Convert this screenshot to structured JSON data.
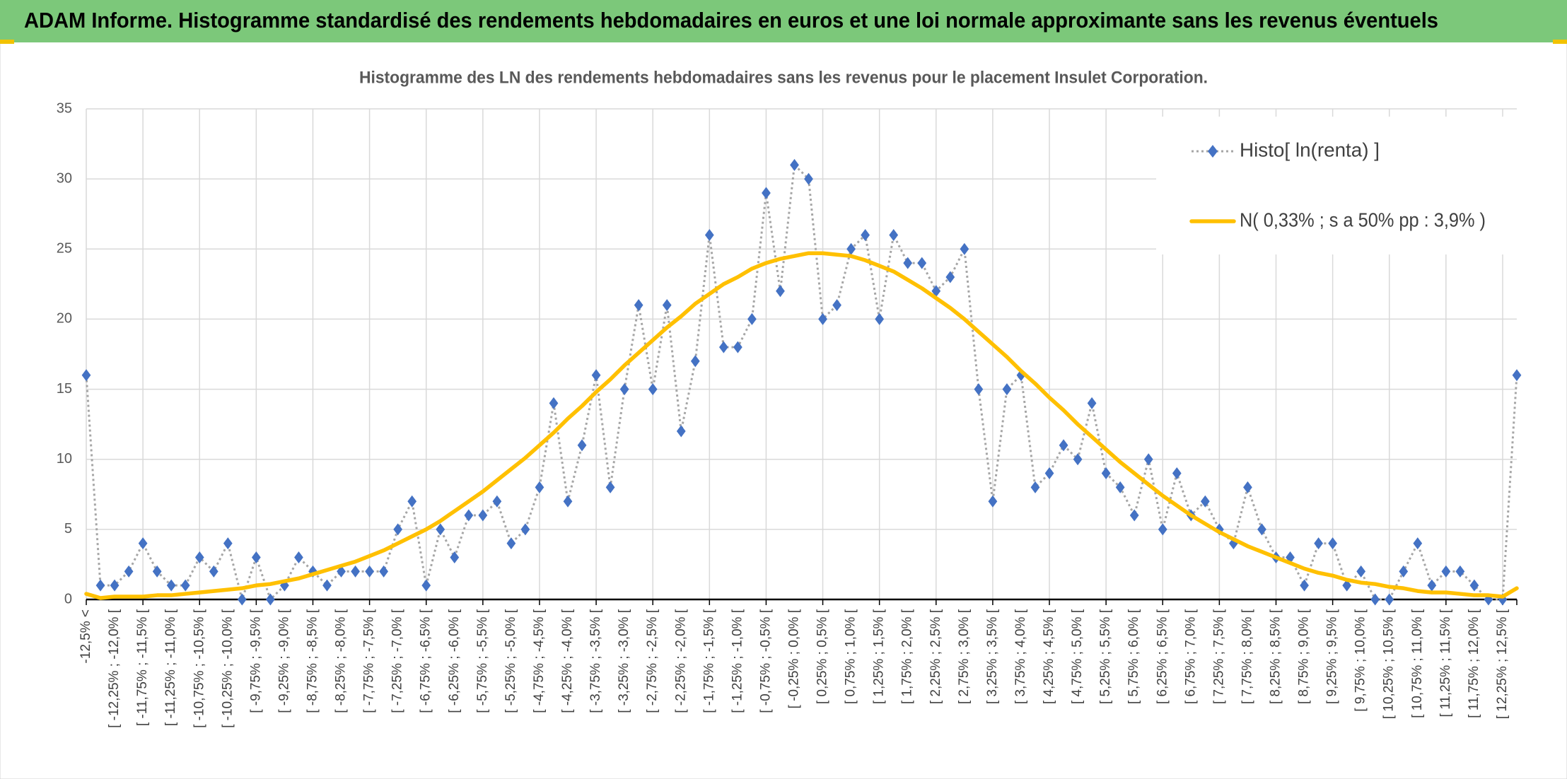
{
  "header": {
    "title": "ADAM Informe. Histogramme standardisé des rendements hebdomadaires en euros et une loi normale approximante sans les revenus éventuels"
  },
  "chart_data": {
    "type": "line",
    "title": "Histogramme des LN des rendements hebdomadaires sans les revenus pour le placement Insulet Corporation.",
    "categories": [
      "-12,5% <",
      null,
      "[ -12,25% ; -12,0% [",
      null,
      "[ -11,75% ; -11,5% [",
      null,
      "[ -11,25% ; -11,0% [",
      null,
      "[ -10,75% ; -10,5% [",
      null,
      "[ -10,25% ; -10,0% [",
      null,
      "[ -9,75% ; -9,5% [",
      null,
      "[ -9,25% ; -9,0% [",
      null,
      "[ -8,75% ; -8,5% [",
      null,
      "[ -8,25% ; -8,0% [",
      null,
      "[ -7,75% ; -7,5% [",
      null,
      "[ -7,25% ; -7,0% [",
      null,
      "[ -6,75% ; -6,5% [",
      null,
      "[ -6,25% ; -6,0% [",
      null,
      "[ -5,75% ; -5,5% [",
      null,
      "[ -5,25% ; -5,0% [",
      null,
      "[ -4,75% ; -4,5% [",
      null,
      "[ -4,25% ; -4,0% [",
      null,
      "[ -3,75% ; -3,5% [",
      null,
      "[ -3,25% ; -3,0% [",
      null,
      "[ -2,75% ; -2,5% [",
      null,
      "[ -2,25% ; -2,0% [",
      null,
      "[ -1,75% ; -1,5% [",
      null,
      "[ -1,25% ; -1,0% [",
      null,
      "[ -0,75% ; -0,5% [",
      null,
      "[ -0,25% ; 0,0% [",
      null,
      "[ 0,25% ; 0,5% [",
      null,
      "[ 0,75% ; 1,0% [",
      null,
      "[ 1,25% ; 1,5% [",
      null,
      "[ 1,75% ; 2,0% [",
      null,
      "[ 2,25% ; 2,5% [",
      null,
      "[ 2,75% ; 3,0% [",
      null,
      "[ 3,25% ; 3,5% [",
      null,
      "[ 3,75% ; 4,0% [",
      null,
      "[ 4,25% ; 4,5% [",
      null,
      "[ 4,75% ; 5,0% [",
      null,
      "[ 5,25% ; 5,5% [",
      null,
      "[ 5,75% ; 6,0% [",
      null,
      "[ 6,25% ; 6,5% [",
      null,
      "[ 6,75% ; 7,0% [",
      null,
      "[ 7,25% ; 7,5% [",
      null,
      "[ 7,75% ; 8,0% [",
      null,
      "[ 8,25% ; 8,5% [",
      null,
      "[ 8,75% ; 9,0% [",
      null,
      "[ 9,25% ; 9,5% [",
      null,
      "[ 9,75% ; 10,0% [",
      null,
      "[ 10,25% ; 10,5% [",
      null,
      "[ 10,75% ; 11,0% [",
      null,
      "[ 11,25% ; 11,5% [",
      null,
      "[ 11,75% ; 12,0% [",
      null,
      "[ 12,25% ; 12,5% [",
      null
    ],
    "series": [
      {
        "name": "Histo[ ln(renta) ]",
        "color": "#4472c4",
        "values": [
          16,
          1,
          1,
          2,
          4,
          2,
          1,
          1,
          3,
          2,
          4,
          0,
          3,
          0,
          1,
          3,
          2,
          1,
          2,
          2,
          2,
          2,
          5,
          7,
          1,
          5,
          3,
          6,
          6,
          7,
          4,
          5,
          8,
          14,
          7,
          11,
          16,
          8,
          15,
          21,
          15,
          21,
          12,
          17,
          26,
          18,
          18,
          20,
          29,
          22,
          31,
          30,
          20,
          21,
          25,
          26,
          20,
          26,
          24,
          24,
          22,
          23,
          25,
          15,
          7,
          15,
          16,
          8,
          9,
          11,
          10,
          14,
          9,
          8,
          6,
          10,
          5,
          9,
          6,
          7,
          5,
          4,
          8,
          5,
          3,
          3,
          1,
          4,
          4,
          1,
          2,
          0,
          0,
          2,
          4,
          1,
          2,
          2,
          1,
          0,
          0,
          16
        ]
      },
      {
        "name": "N( 0,33% ; s a 50% pp : 3,9% )",
        "color": "#ffc000",
        "values": [
          0.4,
          0.1,
          0.2,
          0.2,
          0.2,
          0.3,
          0.3,
          0.4,
          0.5,
          0.6,
          0.7,
          0.8,
          1.0,
          1.1,
          1.3,
          1.5,
          1.8,
          2.1,
          2.4,
          2.7,
          3.1,
          3.5,
          4.0,
          4.5,
          5.0,
          5.6,
          6.3,
          7.0,
          7.7,
          8.5,
          9.3,
          10.1,
          11.0,
          11.9,
          12.9,
          13.8,
          14.8,
          15.7,
          16.7,
          17.6,
          18.5,
          19.4,
          20.2,
          21.1,
          21.8,
          22.5,
          23.0,
          23.6,
          24.0,
          24.3,
          24.5,
          24.7,
          24.7,
          24.6,
          24.5,
          24.2,
          23.8,
          23.4,
          22.8,
          22.2,
          21.5,
          20.8,
          20.0,
          19.1,
          18.2,
          17.3,
          16.3,
          15.4,
          14.4,
          13.5,
          12.5,
          11.6,
          10.7,
          9.8,
          9.0,
          8.2,
          7.4,
          6.7,
          6.0,
          5.4,
          4.8,
          4.3,
          3.8,
          3.4,
          3.0,
          2.6,
          2.2,
          1.9,
          1.7,
          1.4,
          1.2,
          1.1,
          0.9,
          0.8,
          0.6,
          0.5,
          0.5,
          0.4,
          0.3,
          0.3,
          0.2,
          0.8
        ]
      }
    ],
    "ylim": [
      0,
      35
    ],
    "yticks": [
      0,
      5,
      10,
      15,
      20,
      25,
      30,
      35
    ],
    "grid": true,
    "legend": "top-right"
  }
}
